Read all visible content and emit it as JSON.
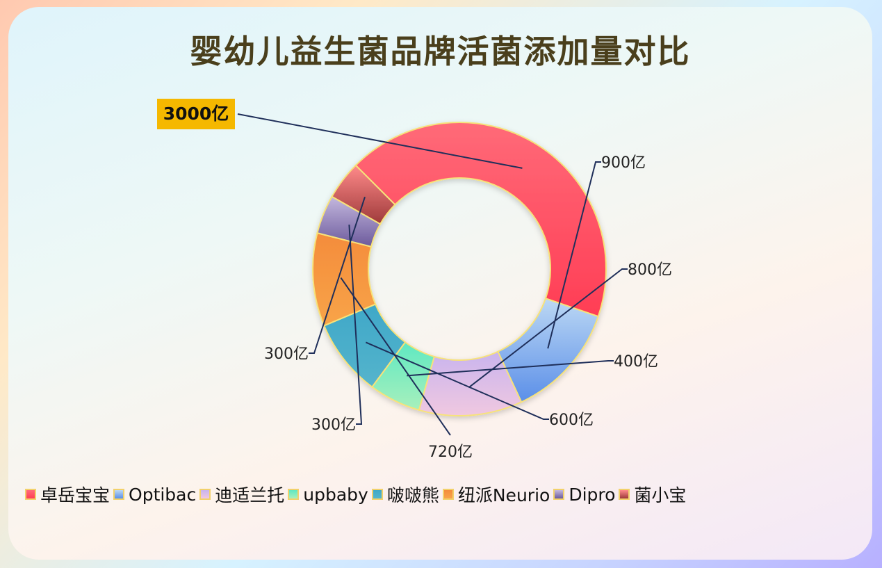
{
  "title": "婴幼儿益生菌品牌活菌添加量对比",
  "chart_data": {
    "type": "pie",
    "donut": true,
    "title": "婴幼儿益生菌品牌活菌添加量对比",
    "unit": "亿",
    "categories": [
      "卓岳宝宝",
      "Optibac",
      "迪适兰托",
      "upbaby",
      "啵啵熊",
      "纽派Neurio",
      "Dipro",
      "菌小宝"
    ],
    "values": [
      3000,
      900,
      800,
      400,
      600,
      720,
      300,
      300
    ],
    "labels": [
      "3000亿",
      "900亿",
      "800亿",
      "400亿",
      "600亿",
      "720亿",
      "300亿",
      "300亿"
    ],
    "highlighted": "卓岳宝宝",
    "legend_position": "bottom",
    "colors": [
      [
        "#ff6a78",
        "#ff3d55"
      ],
      [
        "#bcd8f4",
        "#5b8fe8"
      ],
      [
        "#c9b4ee",
        "#f0c8e0"
      ],
      [
        "#5fe8c2",
        "#a8f0bc"
      ],
      [
        "#3fa8c8",
        "#55b4cc"
      ],
      [
        "#f48c3c",
        "#f8a448"
      ],
      [
        "#c4b8de",
        "#6c5a9c"
      ],
      [
        "#ff8a8a",
        "#9e3a3a"
      ]
    ],
    "highlight_color": "#f5b800",
    "leader_color": "#1f2f5a",
    "border_color": "#f7e27a"
  }
}
